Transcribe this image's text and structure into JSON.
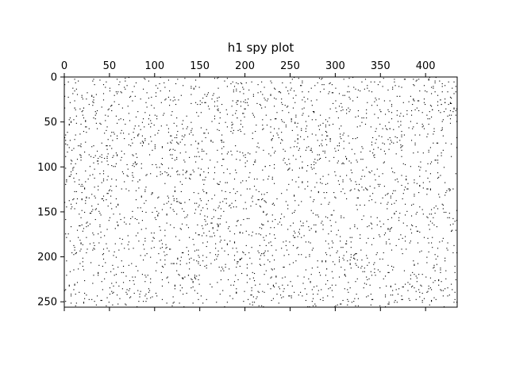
{
  "chart_data": {
    "type": "scatter",
    "subtype": "spy",
    "title": "h1 spy plot",
    "xlabel": "",
    "ylabel": "",
    "n_rows": 256,
    "n_cols": 435,
    "xlim": [
      0,
      435
    ],
    "ylim": [
      256,
      0
    ],
    "x_ticks": [
      0,
      50,
      100,
      150,
      200,
      250,
      300,
      350,
      400
    ],
    "y_ticks": [
      0,
      50,
      100,
      150,
      200,
      250
    ],
    "x_axis_position": "top",
    "y_axis_inverted": true,
    "grid": false,
    "legend": "none",
    "density": 0.025,
    "marker_color": "#000000",
    "background_color": "#ffffff"
  }
}
